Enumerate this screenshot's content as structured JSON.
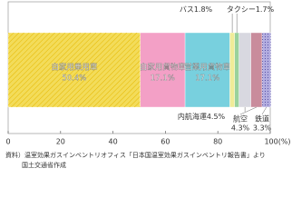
{
  "chart_data": {
    "type": "bar",
    "orientation": "horizontal",
    "stacked": true,
    "series": [
      {
        "name": "自家用乗用車",
        "color": "#f3dc5a",
        "values": [
          50.4
        ],
        "value_labels": [
          "50.4%"
        ]
      },
      {
        "name": "自家用貨物車",
        "color": "#f3a0c6",
        "values": [
          17.1
        ],
        "value_labels": [
          "17.1%"
        ]
      },
      {
        "name": "営業用貨物車",
        "color": "#78d0de",
        "values": [
          17.1
        ],
        "value_labels": [
          "17.1%"
        ]
      },
      {
        "name": "バス",
        "color": "#f0ec98",
        "values": [
          1.8
        ],
        "value_labels": [
          "1.8%"
        ]
      },
      {
        "name": "タクシー",
        "color": "#9ad29c",
        "values": [
          1.7
        ],
        "value_labels": [
          "1.7%"
        ]
      },
      {
        "name": "内航海運",
        "color": "#d8d8e0",
        "values": [
          4.5
        ],
        "value_labels": [
          "4.5%"
        ]
      },
      {
        "name": "航空",
        "color": "#c98c9c",
        "values": [
          4.3
        ],
        "value_labels": [
          "4.3%"
        ]
      },
      {
        "name": "鉄道",
        "color": "#b4aee0",
        "values": [
          3.3
        ],
        "value_labels": [
          "3.3%"
        ]
      }
    ],
    "xlim": [
      0,
      100
    ],
    "xticks": [
      0,
      20,
      40,
      60,
      80,
      {
        "value": 100,
        "label": "100(%)"
      }
    ],
    "source": [
      "資料）温室効果ガスインベントリオフィス「日本国温室効果ガスインベントリ報告書」より",
      "国土交通省作成"
    ]
  }
}
